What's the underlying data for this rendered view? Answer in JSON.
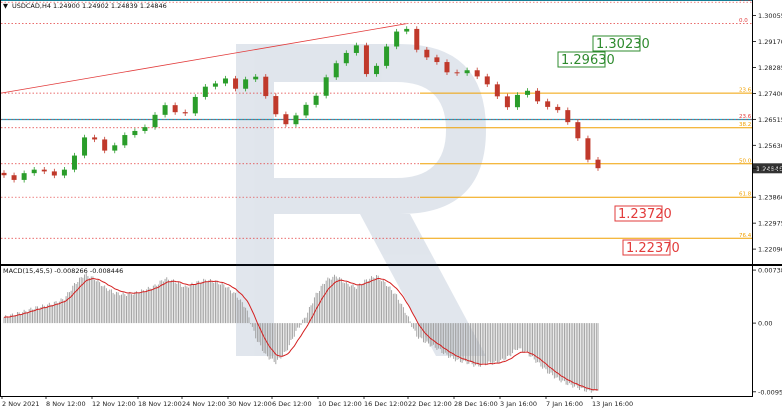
{
  "header": {
    "symbol_line": "USDCAD,H4  1.24900 1.24902 1.24839 1.24846"
  },
  "price_panel": {
    "ymin": 1.2165,
    "ymax": 1.3045,
    "ticks": [
      "1.30275",
      "1.29395",
      "1.28515",
      "1.27635",
      "1.26755",
      "1.25875",
      "1.24995",
      "1.24115",
      "1.23235",
      "1.22355"
    ],
    "tick_values": [
      1.30275,
      1.29395,
      1.28515,
      1.27635,
      1.26755,
      1.25875,
      1.24995,
      1.24115,
      1.23235,
      1.22355
    ],
    "price_axis_labels": [
      "1.30850",
      "1.30055",
      "1.29170",
      "1.28285",
      "1.27400",
      "1.26515",
      "1.25630",
      "1.24846",
      "1.23860",
      "1.22975",
      "1.22090"
    ],
    "price_axis_values": [
      1.3085,
      1.30055,
      1.2917,
      1.28285,
      1.274,
      1.26515,
      1.2563,
      1.24846,
      1.2386,
      1.22975,
      1.2209
    ],
    "current_price": "1.24846"
  },
  "levels": {
    "cyan": [
      {
        "value": 1.3058,
        "label": "1.30230"
      },
      {
        "value": 1.2651,
        "label": ""
      }
    ],
    "red_fib": [
      {
        "pct": "38.2",
        "value": 1.3058
      },
      {
        "pct": "0.0",
        "value": 1.2978
      },
      {
        "pct": "23.6",
        "value": 1.2651
      }
    ],
    "orange_fib": [
      {
        "pct": "23.6",
        "value": 1.2741
      },
      {
        "pct": "38.2",
        "value": 1.2623
      },
      {
        "pct": "50.0",
        "value": 1.25
      },
      {
        "pct": "61.8",
        "value": 1.2386
      },
      {
        "pct": "76.4",
        "value": 1.2246
      }
    ],
    "boxes": [
      {
        "text": "1.30230",
        "color": "#2e8b2e"
      },
      {
        "text": "1.29630",
        "color": "#2e8b2e"
      },
      {
        "text": "1.23720",
        "color": "#e23b3b"
      },
      {
        "text": "1.22370",
        "color": "#e23b3b"
      }
    ]
  },
  "macd": {
    "label": "MACD(15,45,5) -0.008266 -0.008446",
    "axis_labels": [
      "0.007388",
      "0.00",
      "-0.009573"
    ]
  },
  "x_axis": {
    "labels": [
      "2 Nov 2021",
      "8 Nov 12:00",
      "12 Nov 12:00",
      "18 Nov 12:00",
      "24 Nov 12:00",
      "30 Nov 12:00",
      "6 Dec 12:00",
      "10 Dec 12:00",
      "16 Dec 12:00",
      "22 Dec 12:00",
      "28 Dec 16:00",
      "3 Jan 16:00",
      "7 Jan 16:00",
      "13 Jan 16:00"
    ]
  },
  "colors": {
    "bull": "#2a9d2a",
    "bear": "#c0392b",
    "cyan": "#1aa6c4",
    "orange": "#f0a000",
    "red": "#e23b3b",
    "green_label": "#2e8b2e",
    "macd_hist": "#9c9c9c",
    "macd_signal": "#d42020"
  },
  "chart_data": {
    "type": "line",
    "title": "USDCAD,H4",
    "series": [
      {
        "name": "USDCAD",
        "values": [
          1.2461,
          1.2445,
          1.2468,
          1.248,
          1.2474,
          1.246,
          1.248,
          1.2528,
          1.259,
          1.2583,
          1.2545,
          1.2563,
          1.2598,
          1.2612,
          1.2625,
          1.2667,
          1.27,
          1.2676,
          1.2672,
          1.2728,
          1.2763,
          1.2774,
          1.2791,
          1.2756,
          1.2788,
          1.2797,
          1.2731,
          1.2669,
          1.2635,
          1.2665,
          1.2701,
          1.2732,
          1.2795,
          1.2843,
          1.2878,
          1.2904,
          1.2806,
          1.2834,
          1.29,
          1.2951,
          1.296,
          1.2889,
          1.2863,
          1.2847,
          1.2812,
          1.2809,
          1.2819,
          1.2798,
          1.2771,
          1.273,
          1.2693,
          1.2735,
          1.2749,
          1.2713,
          1.2694,
          1.2683,
          1.2642,
          1.2587,
          1.2514,
          1.2485
        ]
      }
    ],
    "macd_hist": [
      0.0008,
      0.0012,
      0.0016,
      0.0021,
      0.0024,
      0.0028,
      0.0034,
      0.0054,
      0.0068,
      0.0062,
      0.005,
      0.0042,
      0.004,
      0.0042,
      0.0046,
      0.0052,
      0.0062,
      0.0058,
      0.005,
      0.0056,
      0.006,
      0.0058,
      0.0052,
      0.004,
      0.0022,
      -0.002,
      -0.0045,
      -0.0055,
      -0.004,
      -0.0012,
      0.001,
      0.004,
      0.006,
      0.0066,
      0.0055,
      0.005,
      0.006,
      0.0066,
      0.0054,
      0.0038,
      0.0012,
      -0.0018,
      -0.0028,
      -0.0035,
      -0.0045,
      -0.0052,
      -0.0055,
      -0.006,
      -0.0056,
      -0.0055,
      -0.0048,
      -0.0035,
      -0.0042,
      -0.0055,
      -0.0068,
      -0.0078,
      -0.0085,
      -0.009,
      -0.0095,
      -0.0094
    ],
    "ylabel": "",
    "xlabel": "",
    "grid": false,
    "legend": "none"
  }
}
